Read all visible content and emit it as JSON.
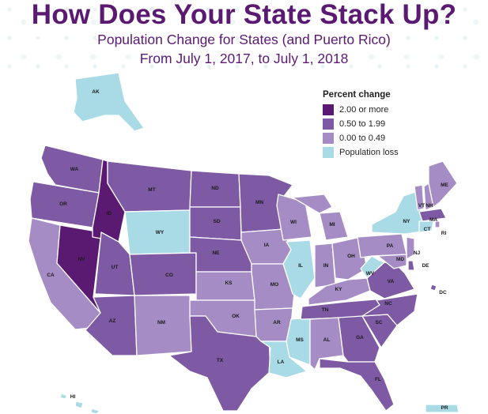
{
  "title": "How Does Your State Stack Up?",
  "subtitle_line1": "Population Change for States (and Puerto Rico)",
  "subtitle_line2": "From July 1, 2017, to July 1, 2018",
  "legend": {
    "title": "Percent change",
    "items": [
      {
        "label": "2.00 or more",
        "color": "#5b1a72"
      },
      {
        "label": "0.50 to 1.99",
        "color": "#7d5aa3"
      },
      {
        "label": "0.00 to 0.49",
        "color": "#a58cc4"
      },
      {
        "label": "Population loss",
        "color": "#a8dbe6"
      }
    ]
  },
  "states": [
    {
      "abbr": "AK",
      "category": "loss"
    },
    {
      "abbr": "HI",
      "category": "loss"
    },
    {
      "abbr": "PR",
      "category": "loss"
    },
    {
      "abbr": "WA",
      "category": "mid"
    },
    {
      "abbr": "OR",
      "category": "mid"
    },
    {
      "abbr": "CA",
      "category": "low"
    },
    {
      "abbr": "NV",
      "category": "high"
    },
    {
      "abbr": "ID",
      "category": "high"
    },
    {
      "abbr": "MT",
      "category": "mid"
    },
    {
      "abbr": "WY",
      "category": "loss"
    },
    {
      "abbr": "UT",
      "category": "mid"
    },
    {
      "abbr": "AZ",
      "category": "mid"
    },
    {
      "abbr": "CO",
      "category": "mid"
    },
    {
      "abbr": "NM",
      "category": "low"
    },
    {
      "abbr": "ND",
      "category": "mid"
    },
    {
      "abbr": "SD",
      "category": "mid"
    },
    {
      "abbr": "NE",
      "category": "mid"
    },
    {
      "abbr": "KS",
      "category": "low"
    },
    {
      "abbr": "OK",
      "category": "low"
    },
    {
      "abbr": "TX",
      "category": "mid"
    },
    {
      "abbr": "MN",
      "category": "mid"
    },
    {
      "abbr": "IA",
      "category": "low"
    },
    {
      "abbr": "MO",
      "category": "low"
    },
    {
      "abbr": "AR",
      "category": "low"
    },
    {
      "abbr": "LA",
      "category": "loss"
    },
    {
      "abbr": "WI",
      "category": "low"
    },
    {
      "abbr": "IL",
      "category": "loss"
    },
    {
      "abbr": "MS",
      "category": "loss"
    },
    {
      "abbr": "MI",
      "category": "low"
    },
    {
      "abbr": "IN",
      "category": "low"
    },
    {
      "abbr": "OH",
      "category": "low"
    },
    {
      "abbr": "KY",
      "category": "low"
    },
    {
      "abbr": "TN",
      "category": "mid"
    },
    {
      "abbr": "AL",
      "category": "low"
    },
    {
      "abbr": "GA",
      "category": "mid"
    },
    {
      "abbr": "FL",
      "category": "mid"
    },
    {
      "abbr": "SC",
      "category": "mid"
    },
    {
      "abbr": "NC",
      "category": "mid"
    },
    {
      "abbr": "VA",
      "category": "mid"
    },
    {
      "abbr": "WV",
      "category": "loss"
    },
    {
      "abbr": "PA",
      "category": "low"
    },
    {
      "abbr": "NY",
      "category": "loss"
    },
    {
      "abbr": "VT",
      "category": "low"
    },
    {
      "abbr": "NH",
      "category": "low"
    },
    {
      "abbr": "ME",
      "category": "low"
    },
    {
      "abbr": "MA",
      "category": "mid"
    },
    {
      "abbr": "RI",
      "category": "low"
    },
    {
      "abbr": "CT",
      "category": "loss"
    },
    {
      "abbr": "NJ",
      "category": "low"
    },
    {
      "abbr": "DE",
      "category": "mid"
    },
    {
      "abbr": "MD",
      "category": "low"
    },
    {
      "abbr": "DC",
      "category": "mid"
    }
  ],
  "category_colors": {
    "high": "#5b1a72",
    "mid": "#7d5aa3",
    "low": "#a58cc4",
    "loss": "#a8dbe6"
  }
}
